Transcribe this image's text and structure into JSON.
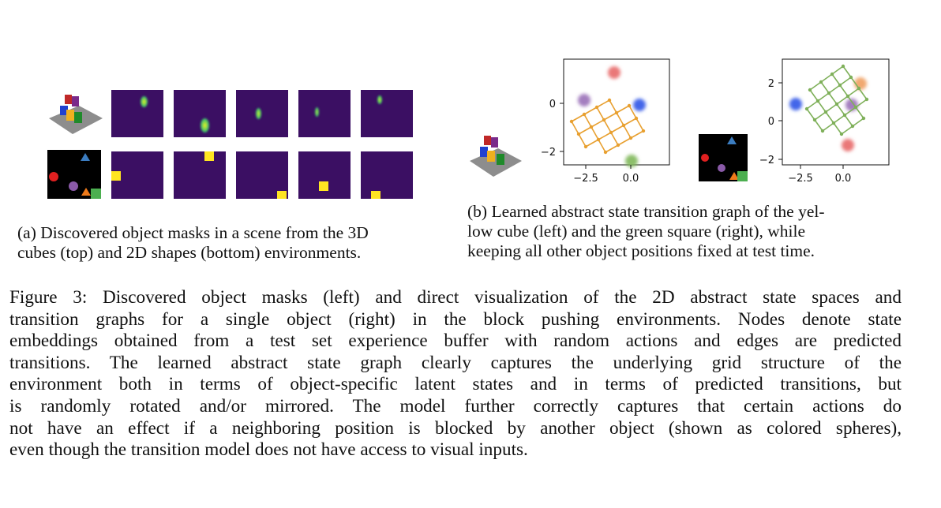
{
  "fig_a": {
    "caption": [
      "(a) Discovered object masks in a scene from the 3D",
      "cubes (top) and 2D shapes (bottom) environments."
    ]
  },
  "fig_b": {
    "caption": [
      "(b) Learned abstract state transition graph of the yel-",
      "low cube (left) and the green square (right), while",
      "keeping all other object positions fixed at test time."
    ],
    "left_plot": {
      "xticks": [
        "−2.5",
        "0.0"
      ],
      "yticks": [
        "0",
        "−2"
      ]
    },
    "right_plot": {
      "xticks": [
        "−2.5",
        "0.0"
      ],
      "yticks": [
        "2",
        "0",
        "−2"
      ]
    },
    "colors": {
      "left_graph": "#e8a030",
      "right_graph": "#7fb05a"
    }
  },
  "main_caption": [
    "Figure 3: Discovered object masks (left) and direct visualization of the 2D abstract state spaces and",
    "transition graphs for a single object (right) in the block pushing environments. Nodes denote state",
    "embeddings obtained from a test set experience buffer with random actions and edges are predicted",
    "transitions. The learned abstract state graph clearly captures the underlying grid structure of the",
    "environment both in terms of object-specific latent states and in terms of predicted transitions, but",
    "is randomly rotated and/or mirrored. The model further correctly captures that certain actions do",
    "not have an effect if a neighboring position is blocked by another object (shown as colored spheres),",
    "even though the transition model does not have access to visual inputs."
  ]
}
